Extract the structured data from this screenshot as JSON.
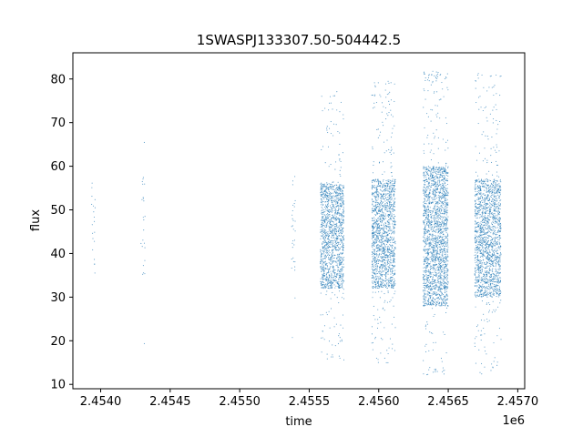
{
  "chart_data": {
    "type": "scatter",
    "title": "1SWASPJ133307.50-504442.5",
    "xlabel": "time",
    "ylabel": "flux",
    "x_offset_label": "1e6",
    "xlim": [
      2.4538,
      2.45705
    ],
    "ylim": [
      9,
      86
    ],
    "x_ticks": [
      2.454,
      2.4545,
      2.455,
      2.4555,
      2.456,
      2.4565,
      2.457
    ],
    "x_tick_labels": [
      "2.4540",
      "2.4545",
      "2.4550",
      "2.4555",
      "2.4560",
      "2.4565",
      "2.4570"
    ],
    "y_ticks": [
      10,
      20,
      30,
      40,
      50,
      60,
      70,
      80
    ],
    "y_tick_labels": [
      "10",
      "20",
      "30",
      "40",
      "50",
      "60",
      "70",
      "80"
    ],
    "grid": false,
    "point_color": "#1f77b4",
    "clusters": [
      {
        "x_start": 2.45393,
        "x_end": 2.45396,
        "y_low": 35,
        "y_high": 58,
        "count": 20
      },
      {
        "x_start": 2.45429,
        "x_end": 2.45432,
        "y_low": 35,
        "y_high": 61,
        "count": 25
      },
      {
        "x_start": 2.45537,
        "x_end": 2.4554,
        "y_low": 36,
        "y_high": 58,
        "count": 30
      },
      {
        "x_start": 2.45558,
        "x_end": 2.45575,
        "y_low": 32,
        "y_high": 56,
        "count": 1400
      },
      {
        "x_start": 2.45595,
        "x_end": 2.45612,
        "y_low": 32,
        "y_high": 57,
        "count": 1500
      },
      {
        "x_start": 2.45632,
        "x_end": 2.4565,
        "y_low": 28,
        "y_high": 60,
        "count": 2000
      },
      {
        "x_start": 2.45669,
        "x_end": 2.45688,
        "y_low": 30,
        "y_high": 57,
        "count": 1700
      }
    ]
  }
}
